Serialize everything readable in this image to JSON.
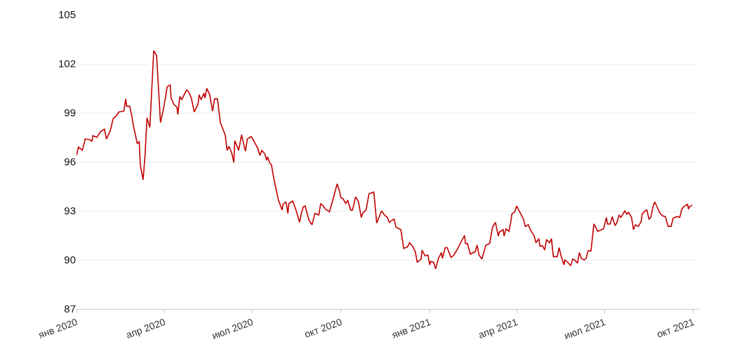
{
  "chart_data": {
    "type": "line",
    "x": [
      "2020-01-01",
      "2020-01-03",
      "2020-01-07",
      "2020-01-10",
      "2020-01-15",
      "2020-01-17",
      "2020-01-18",
      "2020-01-22",
      "2020-01-26",
      "2020-01-30",
      "2020-02-01",
      "2020-02-05",
      "2020-02-08",
      "2020-02-11",
      "2020-02-14",
      "2020-02-19",
      "2020-02-21",
      "2020-02-22",
      "2020-02-25",
      "2020-02-27",
      "2020-02-29",
      "2020-03-04",
      "2020-03-06",
      "2020-03-07",
      "2020-03-10",
      "2020-03-12",
      "2020-03-14",
      "2020-03-17",
      "2020-03-21",
      "2020-03-24",
      "2020-03-28",
      "2020-03-31",
      "2020-04-04",
      "2020-04-07",
      "2020-04-08",
      "2020-04-11",
      "2020-04-14",
      "2020-04-15",
      "2020-04-17",
      "2020-04-19",
      "2020-04-24",
      "2020-04-26",
      "2020-04-29",
      "2020-05-02",
      "2020-05-06",
      "2020-05-07",
      "2020-05-09",
      "2020-05-12",
      "2020-05-13",
      "2020-05-15",
      "2020-05-18",
      "2020-05-21",
      "2020-05-23",
      "2020-05-26",
      "2020-05-28",
      "2020-05-29",
      "2020-06-03",
      "2020-06-05",
      "2020-06-07",
      "2020-06-10",
      "2020-06-12",
      "2020-06-13",
      "2020-06-17",
      "2020-06-20",
      "2020-06-24",
      "2020-06-26",
      "2020-06-30",
      "2020-07-03",
      "2020-07-07",
      "2020-07-09",
      "2020-07-11",
      "2020-07-14",
      "2020-07-16",
      "2020-07-17",
      "2020-07-19",
      "2020-07-21",
      "2020-07-23",
      "2020-07-28",
      "2020-08-01",
      "2020-08-02",
      "2020-08-05",
      "2020-08-07",
      "2020-08-08",
      "2020-08-12",
      "2020-08-16",
      "2020-08-19",
      "2020-08-21",
      "2020-08-23",
      "2020-08-25",
      "2020-08-26",
      "2020-08-29",
      "2020-09-01",
      "2020-09-04",
      "2020-09-08",
      "2020-09-10",
      "2020-09-12",
      "2020-09-15",
      "2020-09-19",
      "2020-09-22",
      "2020-09-27",
      "2020-09-29",
      "2020-10-01",
      "2020-10-03",
      "2020-10-06",
      "2020-10-08",
      "2020-10-11",
      "2020-10-13",
      "2020-10-16",
      "2020-10-19",
      "2020-10-22",
      "2020-10-24",
      "2020-10-27",
      "2020-10-30",
      "2020-11-04",
      "2020-11-05",
      "2020-11-07",
      "2020-11-12",
      "2020-11-15",
      "2020-11-18",
      "2020-11-20",
      "2020-11-25",
      "2020-11-27",
      "2020-12-02",
      "2020-12-05",
      "2020-12-09",
      "2020-12-11",
      "2020-12-14",
      "2020-12-17",
      "2020-12-19",
      "2020-12-23",
      "2020-12-24",
      "2020-12-27",
      "2020-12-30",
      "2021-01-01",
      "2021-01-02",
      "2021-01-05",
      "2021-01-07",
      "2021-01-10",
      "2021-01-13",
      "2021-01-14",
      "2021-01-17",
      "2021-01-19",
      "2021-01-23",
      "2021-01-26",
      "2021-01-29",
      "2021-02-02",
      "2021-02-06",
      "2021-02-07",
      "2021-02-09",
      "2021-02-12",
      "2021-02-17",
      "2021-02-19",
      "2021-02-21",
      "2021-02-24",
      "2021-02-28",
      "2021-03-04",
      "2021-03-07",
      "2021-03-10",
      "2021-03-13",
      "2021-03-14",
      "2021-03-18",
      "2021-03-19",
      "2021-03-21",
      "2021-03-24",
      "2021-03-26",
      "2021-03-27",
      "2021-03-30",
      "2021-04-01",
      "2021-04-04",
      "2021-04-08",
      "2021-04-10",
      "2021-04-13",
      "2021-04-16",
      "2021-04-19",
      "2021-04-21",
      "2021-04-24",
      "2021-04-25",
      "2021-04-28",
      "2021-04-30",
      "2021-05-02",
      "2021-05-05",
      "2021-05-07",
      "2021-05-09",
      "2021-05-13",
      "2021-05-15",
      "2021-05-17",
      "2021-05-20",
      "2021-05-21",
      "2021-05-24",
      "2021-05-27",
      "2021-05-29",
      "2021-05-31",
      "2021-06-03",
      "2021-06-05",
      "2021-06-07",
      "2021-06-10",
      "2021-06-12",
      "2021-06-14",
      "2021-06-17",
      "2021-06-20",
      "2021-06-24",
      "2021-06-30",
      "2021-07-03",
      "2021-07-04",
      "2021-07-07",
      "2021-07-09",
      "2021-07-12",
      "2021-07-14",
      "2021-07-16",
      "2021-07-18",
      "2021-07-22",
      "2021-07-24",
      "2021-07-26",
      "2021-07-29",
      "2021-07-31",
      "2021-08-02",
      "2021-08-05",
      "2021-08-08",
      "2021-08-09",
      "2021-08-12",
      "2021-08-14",
      "2021-08-16",
      "2021-08-18",
      "2021-08-20",
      "2021-08-22",
      "2021-08-24",
      "2021-08-27",
      "2021-08-30",
      "2021-09-02",
      "2021-09-05",
      "2021-09-08",
      "2021-09-10",
      "2021-09-14",
      "2021-09-17",
      "2021-09-19",
      "2021-09-21",
      "2021-09-25",
      "2021-09-26",
      "2021-09-27",
      "2021-09-30"
    ],
    "series": [
      {
        "color": "#c00000",
        "values": [
          96.4,
          96.9,
          96.7,
          97.4,
          97.35,
          97.25,
          97.6,
          97.5,
          97.85,
          98.0,
          97.4,
          97.9,
          98.65,
          98.8,
          99.05,
          99.1,
          99.85,
          99.4,
          99.4,
          98.9,
          98.2,
          97.1,
          97.25,
          95.85,
          94.9,
          96.4,
          98.7,
          98.1,
          102.8,
          102.5,
          98.4,
          99.2,
          100.6,
          100.7,
          99.9,
          99.5,
          99.35,
          98.9,
          100.0,
          99.8,
          100.4,
          100.3,
          99.9,
          99.05,
          99.55,
          100.1,
          99.8,
          100.2,
          99.9,
          100.5,
          100.1,
          99.1,
          99.85,
          99.85,
          98.9,
          98.4,
          97.65,
          96.7,
          96.95,
          96.5,
          95.95,
          97.3,
          96.7,
          97.65,
          96.65,
          97.4,
          97.55,
          97.25,
          96.8,
          96.4,
          96.7,
          96.5,
          96.1,
          96.3,
          95.95,
          95.8,
          95.1,
          93.7,
          93.05,
          93.4,
          93.55,
          92.85,
          93.45,
          93.6,
          92.95,
          92.3,
          92.85,
          93.25,
          93.3,
          93.05,
          92.4,
          92.15,
          92.85,
          92.75,
          93.45,
          93.35,
          93.1,
          92.95,
          93.55,
          94.65,
          94.3,
          93.8,
          93.75,
          93.45,
          93.65,
          93.05,
          93.05,
          93.85,
          93.6,
          92.6,
          92.9,
          93.05,
          94.05,
          94.15,
          93.55,
          92.25,
          93.0,
          92.75,
          92.6,
          92.3,
          92.5,
          92.0,
          91.85,
          90.7,
          90.8,
          91.05,
          90.85,
          90.5,
          89.85,
          90.05,
          90.6,
          90.25,
          90.3,
          89.7,
          89.9,
          89.85,
          89.45,
          90.1,
          90.45,
          90.1,
          90.75,
          90.75,
          90.15,
          90.3,
          90.6,
          91.05,
          91.5,
          91.0,
          91.0,
          90.35,
          90.5,
          90.9,
          90.3,
          90.05,
          90.9,
          91.0,
          92.0,
          92.3,
          91.45,
          91.7,
          91.85,
          91.45,
          91.9,
          91.75,
          92.35,
          92.8,
          92.95,
          93.3,
          92.95,
          92.5,
          92.05,
          92.15,
          91.75,
          91.5,
          91.05,
          91.3,
          90.85,
          90.85,
          90.6,
          91.25,
          91.05,
          91.3,
          90.2,
          90.2,
          90.75,
          90.25,
          89.7,
          90.0,
          89.85,
          89.65,
          90.05,
          90.0,
          89.8,
          90.45,
          90.1,
          90.0,
          90.1,
          90.55,
          90.55,
          92.2,
          91.75,
          91.9,
          92.6,
          92.2,
          92.2,
          92.65,
          92.1,
          92.3,
          92.75,
          92.6,
          93.0,
          92.8,
          92.9,
          92.6,
          91.85,
          92.15,
          92.05,
          92.35,
          92.8,
          93.0,
          93.05,
          92.5,
          92.6,
          93.2,
          93.55,
          93.3,
          92.9,
          92.7,
          92.65,
          92.05,
          92.05,
          92.55,
          92.65,
          92.6,
          93.1,
          93.25,
          93.4,
          93.1,
          93.25,
          93.35
        ]
      }
    ],
    "xlim": [
      "2020-01-01",
      "2021-10-07"
    ],
    "xticks": [
      {
        "value": "2020-01-01",
        "label": "янв 2020"
      },
      {
        "value": "2020-04-01",
        "label": "апр 2020"
      },
      {
        "value": "2020-07-01",
        "label": "июл 2020"
      },
      {
        "value": "2020-10-01",
        "label": "окт 2020"
      },
      {
        "value": "2021-01-01",
        "label": "янв 2021"
      },
      {
        "value": "2021-04-01",
        "label": "апр 2021"
      },
      {
        "value": "2021-07-01",
        "label": "июл 2021"
      },
      {
        "value": "2021-10-01",
        "label": "окт 2021"
      }
    ],
    "ylim": [
      87,
      105
    ],
    "yticks": [
      87,
      90,
      93,
      96,
      99,
      102,
      105
    ],
    "grid": "y",
    "marker": "none",
    "line_style": "solid"
  }
}
